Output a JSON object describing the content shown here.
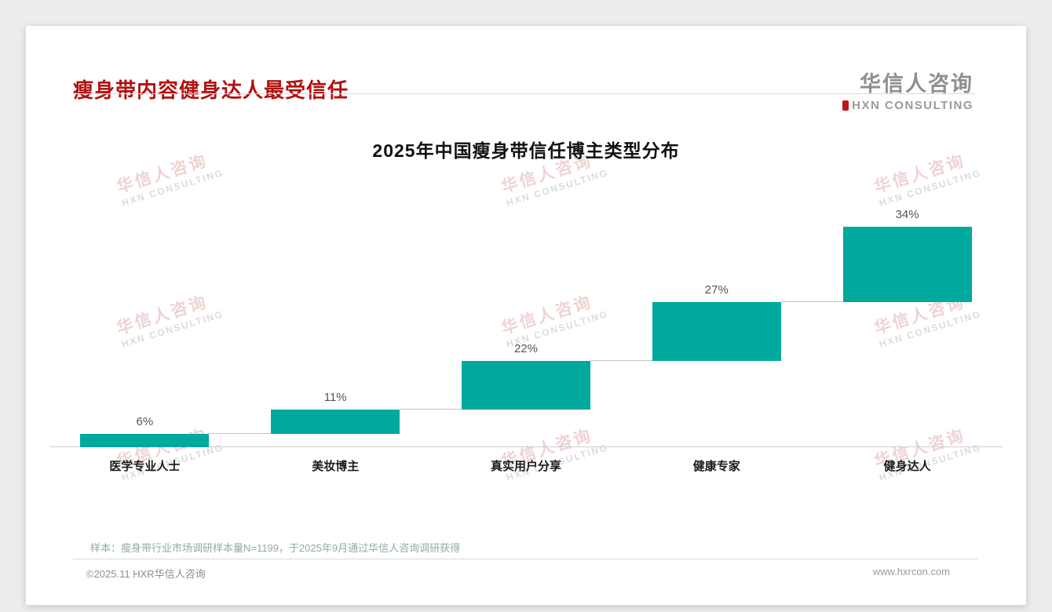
{
  "page": {
    "header_title": "瘦身带内容健身达人最受信任",
    "logo": {
      "cn": "华信人咨询",
      "en": "HXN CONSULTING"
    },
    "watermark": {
      "cn": "华信人咨询",
      "en": "HXN CONSULTING"
    },
    "footnote": "样本：瘦身带行业市场调研样本量N=1199，于2025年9月通过华信人咨询调研获得",
    "footer_left": "©2025.11 HXR华信人咨询",
    "footer_right": "www.hxrcon.com"
  },
  "chart_data": {
    "type": "bar",
    "subtype": "ascending-waterfall-staircase",
    "title": "2025年中国瘦身带信任博主类型分布",
    "categories": [
      "医学专业人士",
      "美妆博主",
      "真实用户分享",
      "健康专家",
      "健身达人"
    ],
    "values": [
      6,
      11,
      22,
      27,
      34
    ],
    "data_labels": [
      "6%",
      "11%",
      "22%",
      "27%",
      "34%"
    ],
    "cumulative": true,
    "bar_color": "#00a99d",
    "ylim": [
      0,
      100
    ],
    "grid": false,
    "legend": false
  }
}
